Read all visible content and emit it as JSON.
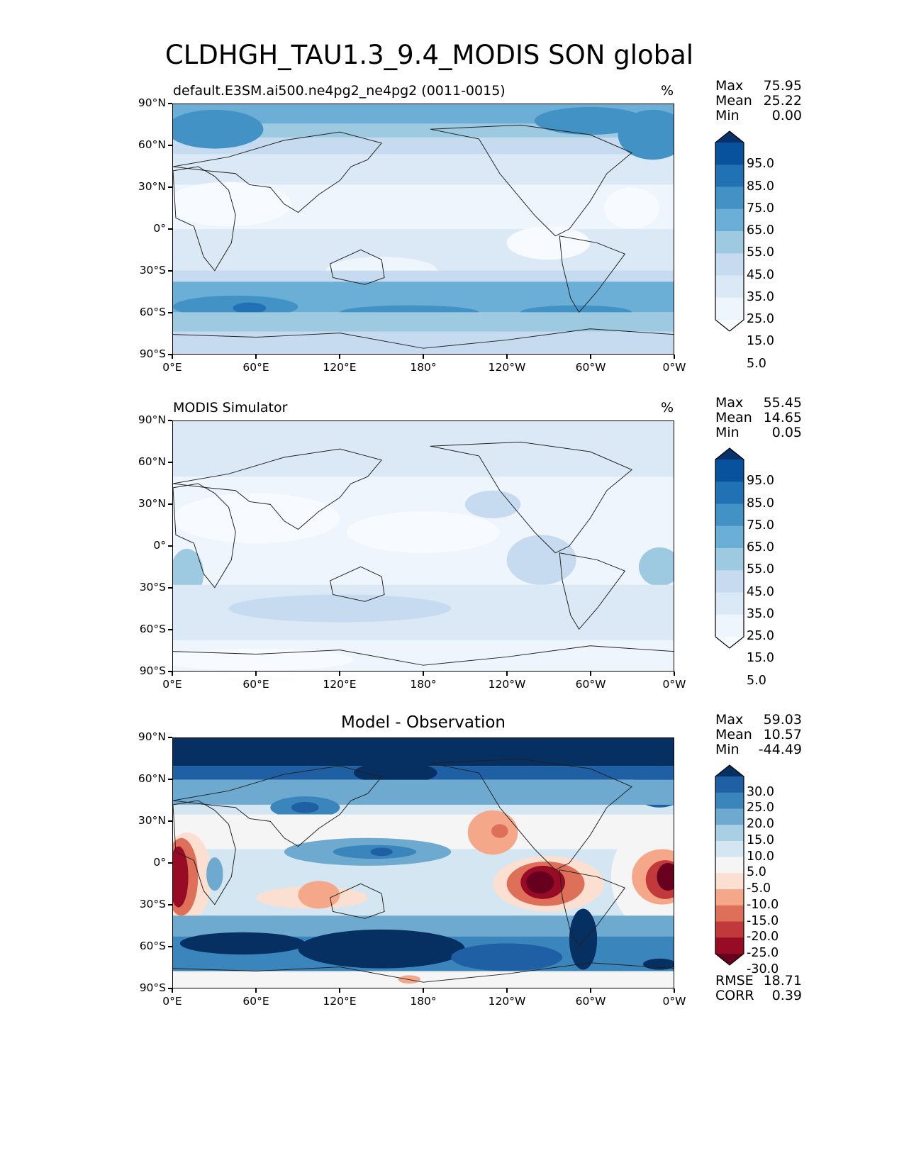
{
  "figure": {
    "title": "CLDHGH_TAU1.3_9.4_MODIS SON global"
  },
  "axes": {
    "lat_labels": [
      "90°N",
      "60°N",
      "30°N",
      "0°",
      "30°S",
      "60°S",
      "90°S"
    ],
    "lon_labels": [
      "0°E",
      "60°E",
      "120°E",
      "180°",
      "120°W",
      "60°W",
      "0°W"
    ]
  },
  "panels": [
    {
      "left_title": "default.E3SM.ai500.ne4pg2_ne4pg2 (0011-0015)",
      "right_title": "%",
      "center_title": "",
      "stats": [
        {
          "label": "Max",
          "value": "75.95"
        },
        {
          "label": "Mean",
          "value": "25.22"
        },
        {
          "label": "Min",
          "value": "0.00"
        }
      ],
      "colorbar": {
        "labels": [
          "95.0",
          "85.0",
          "75.0",
          "65.0",
          "55.0",
          "45.0",
          "35.0",
          "25.0",
          "15.0",
          "5.0"
        ],
        "colors": [
          "#08306b",
          "#08519c",
          "#2171b5",
          "#4292c6",
          "#6baed6",
          "#9ecae1",
          "#c6dbef",
          "#dbe9f6",
          "#eef5fc",
          "#f7fbff"
        ]
      }
    },
    {
      "left_title": "MODIS Simulator",
      "right_title": "%",
      "center_title": "",
      "stats": [
        {
          "label": "Max",
          "value": "55.45"
        },
        {
          "label": "Mean",
          "value": "14.65"
        },
        {
          "label": "Min",
          "value": "0.05"
        }
      ],
      "colorbar": {
        "labels": [
          "95.0",
          "85.0",
          "75.0",
          "65.0",
          "55.0",
          "45.0",
          "35.0",
          "25.0",
          "15.0",
          "5.0"
        ],
        "colors": [
          "#08306b",
          "#08519c",
          "#2171b5",
          "#4292c6",
          "#6baed6",
          "#9ecae1",
          "#c6dbef",
          "#dbe9f6",
          "#eef5fc",
          "#f7fbff"
        ]
      }
    },
    {
      "left_title": "",
      "right_title": "",
      "center_title": "Model - Observation",
      "stats": [
        {
          "label": "Max",
          "value": "59.03"
        },
        {
          "label": "Mean",
          "value": "10.57"
        },
        {
          "label": "Min",
          "value": "-44.49"
        }
      ],
      "extra_stats": [
        {
          "label": "RMSE",
          "value": "18.71"
        },
        {
          "label": "CORR",
          "value": "0.39"
        }
      ],
      "colorbar": {
        "labels": [
          "30.0",
          "25.0",
          "20.0",
          "15.0",
          "10.0",
          "5.0",
          "-5.0",
          "-10.0",
          "-15.0",
          "-20.0",
          "-25.0",
          "-30.0"
        ],
        "colors": [
          "#053061",
          "#1f5fa4",
          "#3b85bd",
          "#6eaad0",
          "#a8cfe4",
          "#d4e6f1",
          "#f5f5f5",
          "#fbe0d1",
          "#f4a889",
          "#de6f59",
          "#c1393a",
          "#970b24",
          "#67001f"
        ]
      }
    }
  ]
}
